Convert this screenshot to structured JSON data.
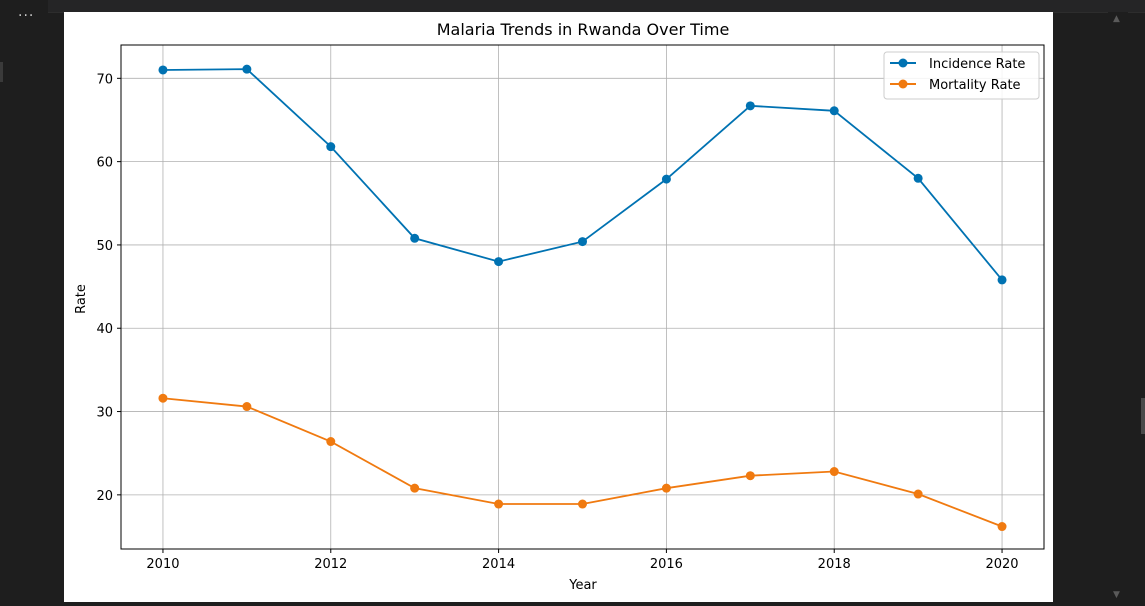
{
  "toolbar": {
    "more_label": "···"
  },
  "scroll": {
    "up": "▲",
    "down": "▼"
  },
  "chart_data": {
    "type": "line",
    "title": "Malaria Trends in Rwanda Over Time",
    "xlabel": "Year",
    "ylabel": "Rate",
    "x": [
      2010,
      2011,
      2012,
      2013,
      2014,
      2015,
      2016,
      2017,
      2018,
      2019,
      2020
    ],
    "xlim": [
      2009.5,
      2020.5
    ],
    "ylim": [
      13.5,
      74.0
    ],
    "xticks": [
      2010,
      2012,
      2014,
      2016,
      2018,
      2020
    ],
    "yticks": [
      20,
      30,
      40,
      50,
      60,
      70
    ],
    "grid": true,
    "legend_position": "top-right",
    "series": [
      {
        "name": "Incidence Rate",
        "color": "#0072b2",
        "values": [
          71.0,
          71.1,
          61.8,
          50.8,
          48.0,
          50.4,
          57.9,
          66.7,
          66.1,
          58.0,
          45.8
        ]
      },
      {
        "name": "Mortality Rate",
        "color": "#f07a10",
        "values": [
          31.6,
          30.6,
          26.4,
          20.8,
          18.9,
          18.9,
          20.8,
          22.3,
          22.8,
          20.1,
          16.2
        ]
      }
    ]
  }
}
